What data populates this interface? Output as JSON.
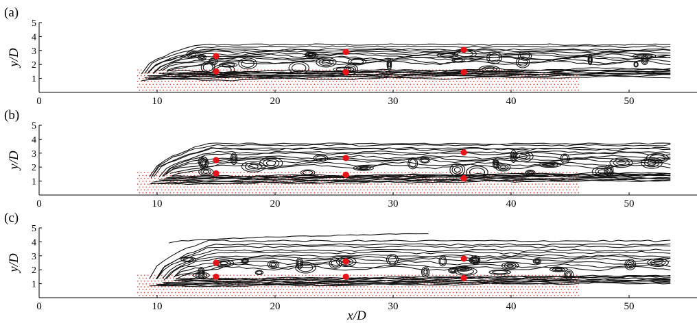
{
  "chart_data": [
    {
      "type": "scatter",
      "panel_label": "(a)",
      "ylabel": "y/D",
      "xlabel": "",
      "xlim": [
        0,
        53.5
      ],
      "ylim": [
        0,
        5
      ],
      "xticks": [
        0,
        10,
        20,
        30,
        40,
        50
      ],
      "yticks": [
        1,
        2,
        3,
        4,
        5
      ],
      "seed_region": {
        "x": [
          8.3,
          45.8
        ],
        "y": [
          0,
          1.7
        ],
        "color": "#e8443a"
      },
      "markers": {
        "color": "#e8141a",
        "x": [
          15,
          15,
          26,
          26,
          36,
          36
        ],
        "y": [
          2.6,
          1.5,
          2.9,
          1.45,
          3.05,
          1.45
        ]
      },
      "contours": {
        "x_start": 8.3,
        "x_end": 53.5,
        "top": 3.4,
        "bottom": 0.9
      }
    },
    {
      "type": "scatter",
      "panel_label": "(b)",
      "ylabel": "y/D",
      "xlabel": "",
      "xlim": [
        0,
        53.5
      ],
      "ylim": [
        0,
        5
      ],
      "xticks": [
        0,
        10,
        20,
        30,
        40,
        50
      ],
      "yticks": [
        1,
        2,
        3,
        4,
        5
      ],
      "seed_region": {
        "x": [
          8.3,
          45.8
        ],
        "y": [
          0,
          1.7
        ],
        "color": "#e8443a"
      },
      "markers": {
        "color": "#e8141a",
        "x": [
          15,
          15,
          26,
          26,
          36,
          36
        ],
        "y": [
          2.5,
          1.55,
          2.65,
          1.45,
          3.05,
          1.2
        ]
      },
      "contours": {
        "x_start": 8.8,
        "x_end": 53.5,
        "top": 3.7,
        "bottom": 0.8
      }
    },
    {
      "type": "scatter",
      "panel_label": "(c)",
      "ylabel": "y/D",
      "xlabel": "x/D",
      "xlim": [
        0,
        53.5
      ],
      "ylim": [
        0,
        5
      ],
      "xticks": [
        0,
        10,
        20,
        30,
        40,
        50
      ],
      "yticks": [
        1,
        2,
        3,
        4,
        5
      ],
      "seed_region": {
        "x": [
          8.3,
          45.8
        ],
        "y": [
          0,
          1.7
        ],
        "color": "#e8443a"
      },
      "markers": {
        "color": "#e8141a",
        "x": [
          15,
          15,
          26,
          26,
          36,
          36
        ],
        "y": [
          2.5,
          1.5,
          2.6,
          1.5,
          2.8,
          1.4
        ]
      },
      "contours": {
        "x_start": 9.3,
        "x_end": 53.5,
        "top": 4.0,
        "bottom": 0.8
      }
    }
  ]
}
